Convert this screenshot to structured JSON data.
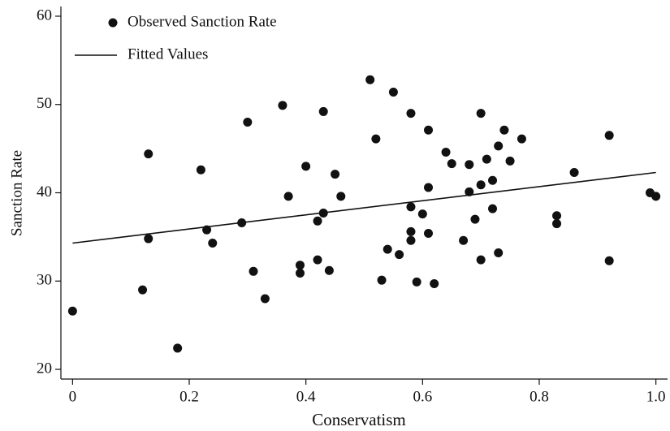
{
  "chart_data": {
    "type": "scatter",
    "x_label": "Conservatism",
    "y_label": "Sanction Rate",
    "xlim": [
      -0.02,
      1.02
    ],
    "ylim": [
      18.9,
      61.1
    ],
    "xticks": [
      0,
      0.2,
      0.4,
      0.6,
      0.8,
      {
        "value": 1,
        "label": "1.0"
      }
    ],
    "yticks": [
      20,
      30,
      40,
      50,
      60
    ],
    "grid": false,
    "legend": "upper left",
    "series": [
      {
        "name": "Observed Sanction Rate",
        "type": "scatter",
        "color": "#111111",
        "x": [
          0.0,
          0.13,
          0.13,
          0.12,
          0.18,
          0.22,
          0.23,
          0.24,
          0.29,
          0.3,
          0.31,
          0.33,
          0.36,
          0.37,
          0.39,
          0.39,
          0.4,
          0.42,
          0.42,
          0.43,
          0.43,
          0.44,
          0.45,
          0.46,
          0.51,
          0.52,
          0.53,
          0.54,
          0.55,
          0.56,
          0.58,
          0.58,
          0.58,
          0.58,
          0.59,
          0.6,
          0.61,
          0.61,
          0.61,
          0.62,
          0.64,
          0.65,
          0.67,
          0.68,
          0.68,
          0.69,
          0.7,
          0.7,
          0.7,
          0.71,
          0.72,
          0.72,
          0.73,
          0.73,
          0.74,
          0.75,
          0.77,
          0.83,
          0.83,
          0.86,
          0.92,
          0.92,
          0.99,
          1.0
        ],
        "values": [
          26.6,
          44.4,
          34.8,
          29.0,
          22.4,
          42.6,
          35.8,
          34.3,
          36.6,
          48.0,
          31.1,
          28.0,
          49.9,
          39.6,
          31.8,
          30.9,
          43.0,
          32.4,
          36.8,
          49.2,
          37.7,
          31.2,
          42.1,
          39.6,
          52.8,
          46.1,
          30.1,
          33.6,
          51.4,
          33.0,
          49.0,
          35.6,
          34.6,
          38.4,
          29.9,
          37.6,
          47.1,
          40.6,
          35.4,
          29.7,
          44.6,
          43.3,
          34.6,
          43.2,
          40.1,
          37.0,
          32.4,
          49.0,
          40.9,
          43.8,
          41.4,
          38.2,
          33.2,
          45.3,
          47.1,
          43.6,
          46.1,
          36.5,
          37.4,
          42.3,
          46.5,
          32.3,
          40.0,
          39.6
        ]
      },
      {
        "name": "Fitted Values",
        "type": "line",
        "color": "#111111",
        "x": [
          0,
          1
        ],
        "values": [
          34.3,
          42.3
        ]
      }
    ]
  }
}
